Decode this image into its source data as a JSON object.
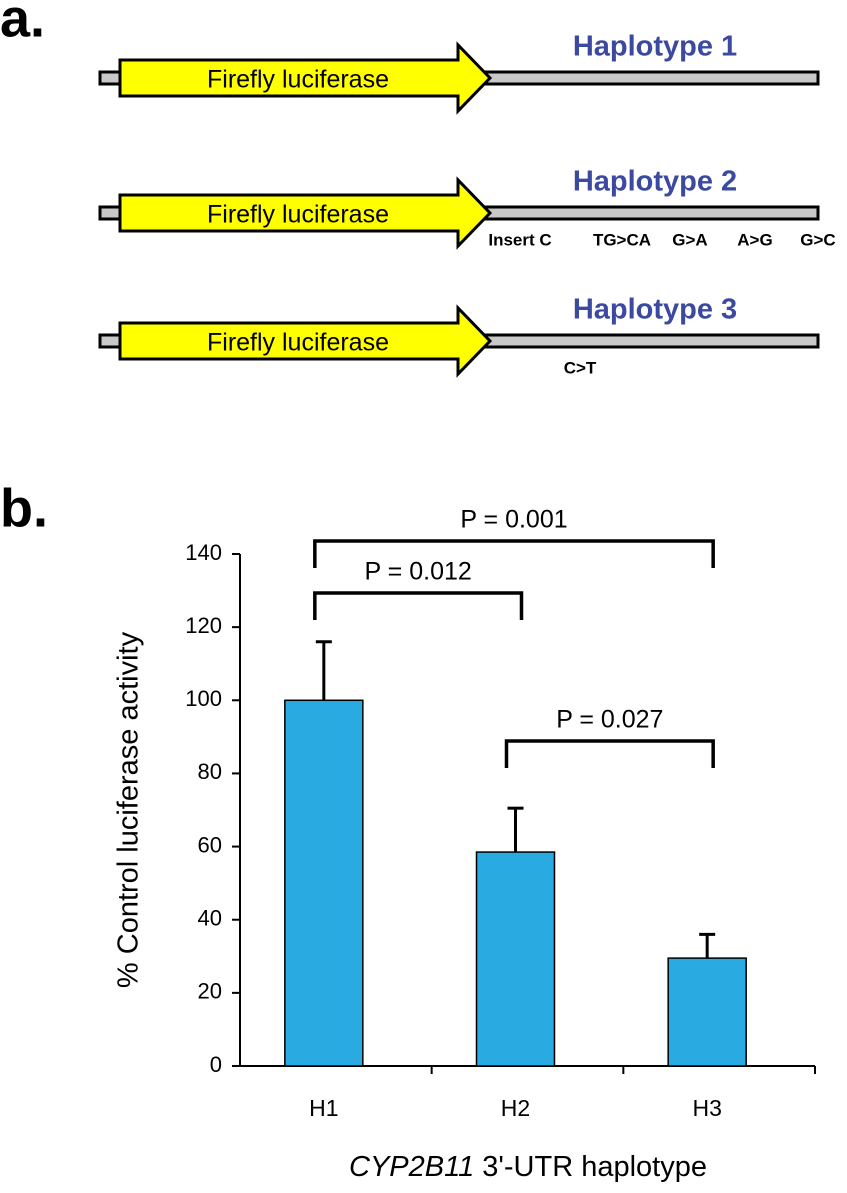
{
  "panel_labels": [
    "a.",
    "b."
  ],
  "constructs": [
    {
      "label": "Haplotype 1",
      "gene": "Firefly luciferase",
      "variants": []
    },
    {
      "label": "Haplotype 2",
      "gene": "Firefly luciferase",
      "variants": [
        "Insert C",
        "TG>CA",
        "G>A",
        "A>G",
        "G>C"
      ]
    },
    {
      "label": "Haplotype 3",
      "gene": "Firefly luciferase",
      "variants": [
        "C>T"
      ]
    }
  ],
  "chart_data": {
    "type": "bar",
    "categories": [
      "H1",
      "H2",
      "H3"
    ],
    "values": [
      100,
      58.5,
      29.5
    ],
    "errors": [
      16,
      12,
      6.5
    ],
    "color": "#29abe2",
    "ylim": [
      0,
      140
    ],
    "yticks": [
      0,
      20,
      40,
      60,
      80,
      100,
      120,
      140
    ],
    "y_label": "% Control luciferase activity",
    "x_label_italic": "CYP2B11",
    "x_label": "3'-UTR haplotype",
    "annotations": [
      {
        "label": "P = 0.001",
        "from": "H1",
        "to": "H3"
      },
      {
        "label": "P = 0.012",
        "from": "H1",
        "to": "H2"
      },
      {
        "label": "P = 0.027",
        "from": "H2",
        "to": "H3"
      }
    ]
  }
}
